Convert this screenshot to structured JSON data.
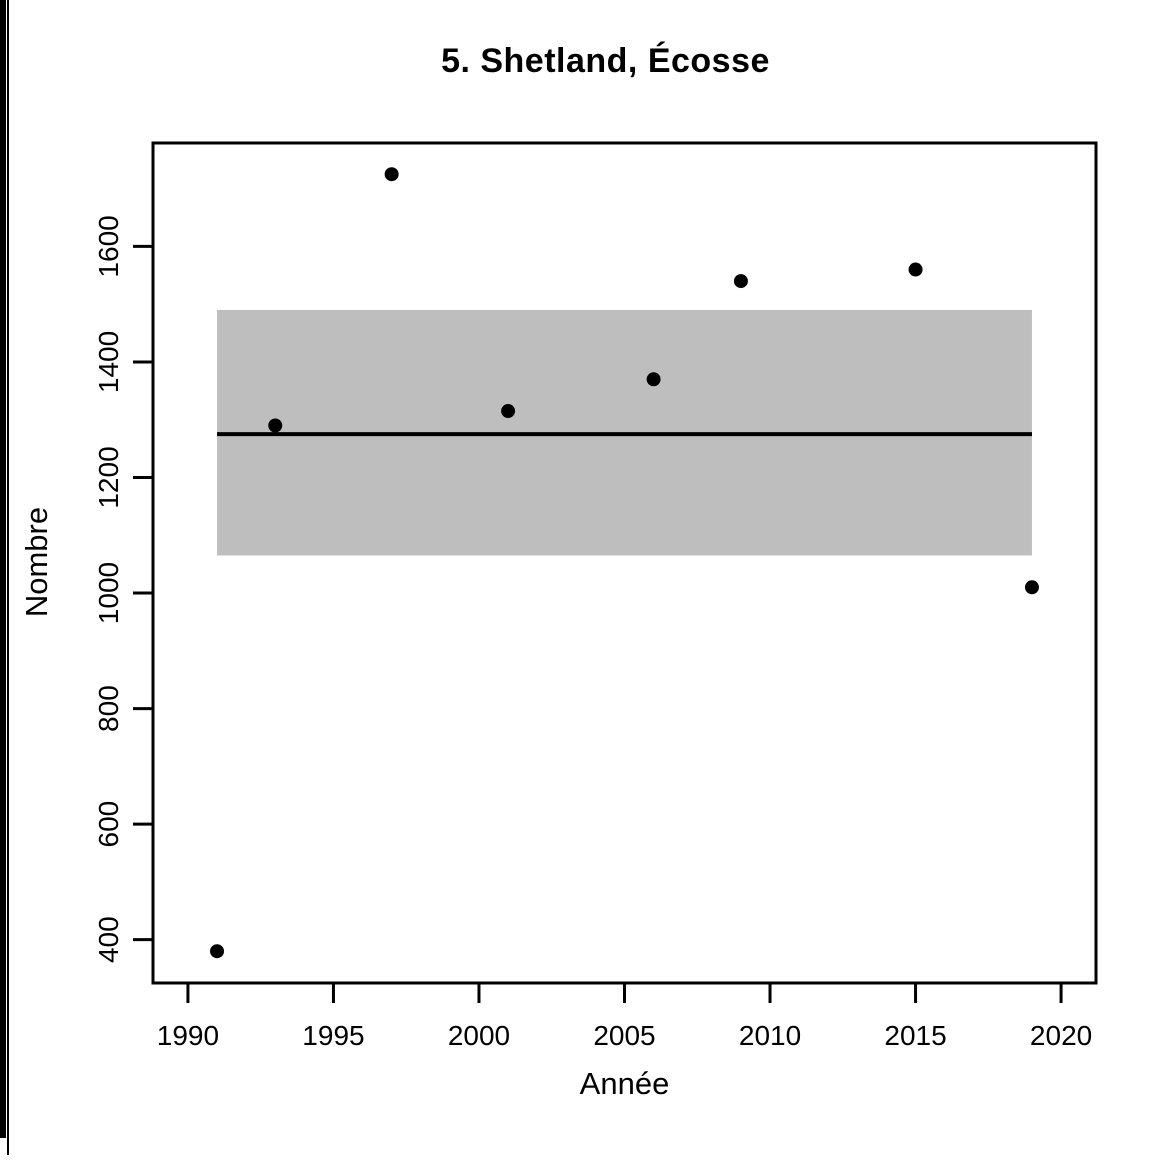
{
  "window": {
    "background": "#ffffff",
    "edge_bar_color": "#000000"
  },
  "chart_data": {
    "type": "scatter",
    "title": "5. Shetland, Écosse",
    "xlabel": "Année",
    "ylabel": "Nombre",
    "points": [
      {
        "x": 1991,
        "y": 380
      },
      {
        "x": 1993,
        "y": 1290
      },
      {
        "x": 1997,
        "y": 1725
      },
      {
        "x": 2001,
        "y": 1315
      },
      {
        "x": 2006,
        "y": 1370
      },
      {
        "x": 2009,
        "y": 1540
      },
      {
        "x": 2015,
        "y": 1560
      },
      {
        "x": 2019,
        "y": 1010
      }
    ],
    "point_color": "#000000",
    "mean_line": {
      "value": 1275,
      "x_start": 1991,
      "x_end": 2019,
      "color": "#000000"
    },
    "band": {
      "y_low": 1065,
      "y_high": 1490,
      "x_start": 1991,
      "x_end": 2019,
      "color": "#bebebe"
    },
    "x_ticks": [
      1990,
      1995,
      2000,
      2005,
      2010,
      2015,
      2020
    ],
    "y_ticks": [
      400,
      600,
      800,
      1000,
      1200,
      1400,
      1600
    ],
    "xlim": [
      1988.8,
      2021.2
    ],
    "ylim": [
      325,
      1779
    ],
    "grid": false,
    "legend": null,
    "axis_color": "#000000"
  }
}
